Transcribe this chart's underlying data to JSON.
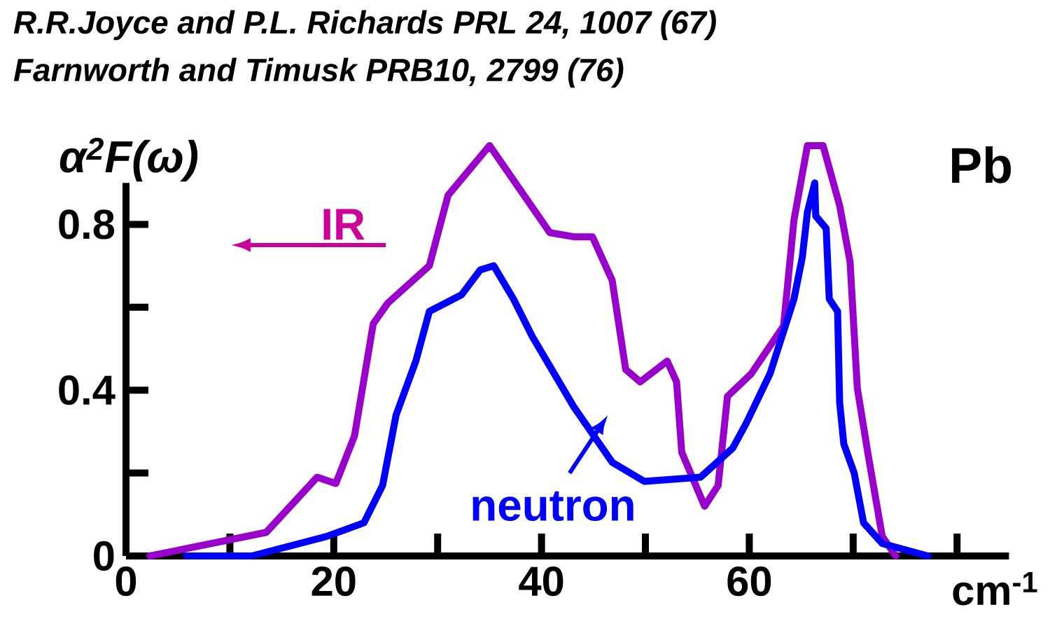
{
  "chart_data": {
    "type": "line",
    "title": "R.R.Joyce and P.L. Richards  PRL 24, 1007 (67)",
    "subtitle": "Farnworth and Timusk PRB10, 2799 (76)",
    "ylabel": "α$^{2}$F(ω)",
    "xlabel": "cm$^{-1}$",
    "annotations": [
      "Pb"
    ],
    "xlim": [
      0,
      85
    ],
    "ylim": [
      0,
      1.0
    ],
    "xticks": [
      0,
      {
        "value": 10,
        "label": null
      },
      20,
      {
        "value": 30,
        "label": null
      },
      40,
      {
        "value": 50,
        "label": null
      },
      60,
      {
        "value": 70,
        "label": null
      },
      {
        "value": 80,
        "label": null
      }
    ],
    "yticks": [
      0,
      {
        "value": 0.2,
        "label": null
      },
      0.4,
      {
        "value": 0.6,
        "label": null
      },
      0.8
    ],
    "grid": false,
    "legend": false,
    "marker": "none",
    "line_style": "solid",
    "series": [
      {
        "name": "IR",
        "color": "#9900cc",
        "x": [
          2.3,
          13.5,
          18.4,
          20.2,
          22.0,
          23.8,
          25.2,
          29.2,
          31.0,
          35.0,
          40.8,
          43.1,
          44.9,
          46.8,
          48.1,
          49.5,
          52.1,
          53.0,
          53.5,
          55.7,
          57.0,
          57.9,
          60.2,
          63.3,
          64.3,
          65.6,
          67.1,
          68.7,
          69.7,
          70.4,
          71.4,
          72.8,
          74.1
        ],
        "values": [
          0.0,
          0.057,
          0.19,
          0.175,
          0.29,
          0.56,
          0.61,
          0.7,
          0.87,
          0.99,
          0.78,
          0.77,
          0.77,
          0.665,
          0.45,
          0.42,
          0.47,
          0.42,
          0.25,
          0.12,
          0.17,
          0.385,
          0.44,
          0.555,
          0.81,
          0.99,
          0.99,
          0.845,
          0.71,
          0.405,
          0.25,
          0.047,
          0.0
        ]
      },
      {
        "name": "neutron",
        "color": "#0000ff",
        "x": [
          5.8,
          12.1,
          19.3,
          22.9,
          24.7,
          26.0,
          27.9,
          29.2,
          32.3,
          34.1,
          35.4,
          37.3,
          39.1,
          43.1,
          46.8,
          49.9,
          55.3,
          58.4,
          59.7,
          62.0,
          64.3,
          65.1,
          65.6,
          66.3,
          66.4,
          67.4,
          67.7,
          68.5,
          68.7,
          69.1,
          70.1,
          71.0,
          72.8,
          77.2
        ],
        "values": [
          0.0,
          0.0,
          0.047,
          0.08,
          0.17,
          0.34,
          0.47,
          0.59,
          0.63,
          0.69,
          0.7,
          0.62,
          0.53,
          0.36,
          0.226,
          0.18,
          0.19,
          0.26,
          0.32,
          0.44,
          0.62,
          0.72,
          0.83,
          0.9,
          0.82,
          0.79,
          0.62,
          0.59,
          0.37,
          0.27,
          0.2,
          0.08,
          0.03,
          0.0
        ]
      }
    ]
  }
}
